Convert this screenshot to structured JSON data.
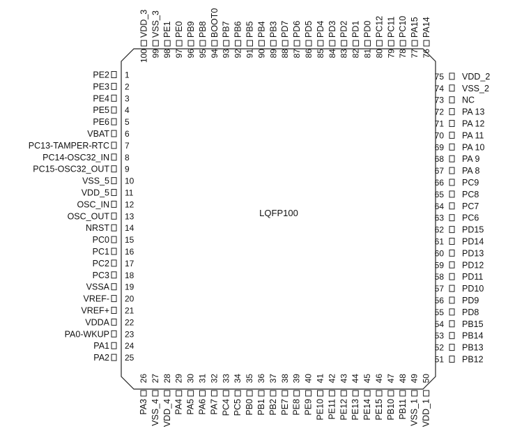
{
  "package": "LQFP100",
  "pins": {
    "left": [
      {
        "num": "1",
        "name": "PE2"
      },
      {
        "num": "2",
        "name": "PE3"
      },
      {
        "num": "3",
        "name": "PE4"
      },
      {
        "num": "4",
        "name": "PE5"
      },
      {
        "num": "5",
        "name": "PE6"
      },
      {
        "num": "6",
        "name": "VBAT"
      },
      {
        "num": "7",
        "name": "PC13-TAMPER-RTC"
      },
      {
        "num": "8",
        "name": "PC14-OSC32_IN"
      },
      {
        "num": "9",
        "name": "PC15-OSC32_OUT"
      },
      {
        "num": "10",
        "name": "VSS_5"
      },
      {
        "num": "11",
        "name": "VDD_5"
      },
      {
        "num": "12",
        "name": "OSC_IN"
      },
      {
        "num": "13",
        "name": "OSC_OUT"
      },
      {
        "num": "14",
        "name": "NRST"
      },
      {
        "num": "15",
        "name": "PC0"
      },
      {
        "num": "16",
        "name": "PC1"
      },
      {
        "num": "17",
        "name": "PC2"
      },
      {
        "num": "18",
        "name": "PC3"
      },
      {
        "num": "19",
        "name": "VSSA"
      },
      {
        "num": "20",
        "name": "VREF-"
      },
      {
        "num": "21",
        "name": "VREF+"
      },
      {
        "num": "22",
        "name": "VDDA"
      },
      {
        "num": "23",
        "name": "PA0-WKUP"
      },
      {
        "num": "24",
        "name": "PA1"
      },
      {
        "num": "25",
        "name": "PA2"
      }
    ],
    "bottom": [
      {
        "num": "26",
        "name": "PA3"
      },
      {
        "num": "27",
        "name": "VSS_4"
      },
      {
        "num": "28",
        "name": "VDD_4"
      },
      {
        "num": "29",
        "name": "PA4"
      },
      {
        "num": "30",
        "name": "PA5"
      },
      {
        "num": "31",
        "name": "PA6"
      },
      {
        "num": "32",
        "name": "PA7"
      },
      {
        "num": "33",
        "name": "PC4"
      },
      {
        "num": "34",
        "name": "PC5"
      },
      {
        "num": "35",
        "name": "PB0"
      },
      {
        "num": "36",
        "name": "PB1"
      },
      {
        "num": "37",
        "name": "PB2"
      },
      {
        "num": "38",
        "name": "PE7"
      },
      {
        "num": "39",
        "name": "PE8"
      },
      {
        "num": "40",
        "name": "PE9"
      },
      {
        "num": "41",
        "name": "PE10"
      },
      {
        "num": "42",
        "name": "PE11"
      },
      {
        "num": "43",
        "name": "PE12"
      },
      {
        "num": "44",
        "name": "PE13"
      },
      {
        "num": "45",
        "name": "PE14"
      },
      {
        "num": "46",
        "name": "PE15"
      },
      {
        "num": "47",
        "name": "PB10"
      },
      {
        "num": "48",
        "name": "PB11"
      },
      {
        "num": "49",
        "name": "VSS_1"
      },
      {
        "num": "50",
        "name": "VDD_1"
      }
    ],
    "right": [
      {
        "num": "51",
        "name": "PB12"
      },
      {
        "num": "52",
        "name": "PB13"
      },
      {
        "num": "53",
        "name": "PB14"
      },
      {
        "num": "54",
        "name": "PB15"
      },
      {
        "num": "55",
        "name": "PD8"
      },
      {
        "num": "56",
        "name": "PD9"
      },
      {
        "num": "57",
        "name": "PD10"
      },
      {
        "num": "58",
        "name": "PD11"
      },
      {
        "num": "59",
        "name": "PD12"
      },
      {
        "num": "60",
        "name": "PD13"
      },
      {
        "num": "61",
        "name": "PD14"
      },
      {
        "num": "62",
        "name": "PD15"
      },
      {
        "num": "63",
        "name": "PC6"
      },
      {
        "num": "64",
        "name": "PC7"
      },
      {
        "num": "65",
        "name": "PC8"
      },
      {
        "num": "66",
        "name": "PC9"
      },
      {
        "num": "67",
        "name": "PA 8"
      },
      {
        "num": "68",
        "name": "PA 9"
      },
      {
        "num": "69",
        "name": "PA 10"
      },
      {
        "num": "70",
        "name": "PA 11"
      },
      {
        "num": "71",
        "name": "PA 12"
      },
      {
        "num": "72",
        "name": "PA 13"
      },
      {
        "num": "73",
        "name": "NC"
      },
      {
        "num": "74",
        "name": "VSS_2"
      },
      {
        "num": "75",
        "name": "VDD_2"
      }
    ],
    "top": [
      {
        "num": "76",
        "name": "PA14"
      },
      {
        "num": "77",
        "name": "PA15"
      },
      {
        "num": "78",
        "name": "PC10"
      },
      {
        "num": "79",
        "name": "PC11"
      },
      {
        "num": "80",
        "name": "PC12"
      },
      {
        "num": "81",
        "name": "PD0"
      },
      {
        "num": "82",
        "name": "PD1"
      },
      {
        "num": "83",
        "name": "PD2"
      },
      {
        "num": "84",
        "name": "PD3"
      },
      {
        "num": "85",
        "name": "PD4"
      },
      {
        "num": "86",
        "name": "PD5"
      },
      {
        "num": "87",
        "name": "PD6"
      },
      {
        "num": "88",
        "name": "PD7"
      },
      {
        "num": "89",
        "name": "PB3"
      },
      {
        "num": "90",
        "name": "PB4"
      },
      {
        "num": "91",
        "name": "PB5"
      },
      {
        "num": "92",
        "name": "PB6"
      },
      {
        "num": "93",
        "name": "PB7"
      },
      {
        "num": "94",
        "name": "BOOT0"
      },
      {
        "num": "95",
        "name": "PB8"
      },
      {
        "num": "96",
        "name": "PB9"
      },
      {
        "num": "97",
        "name": "PE0"
      },
      {
        "num": "98",
        "name": "PE1"
      },
      {
        "num": "99",
        "name": "VSS_3"
      },
      {
        "num": "100",
        "name": "VDD_3"
      }
    ]
  }
}
